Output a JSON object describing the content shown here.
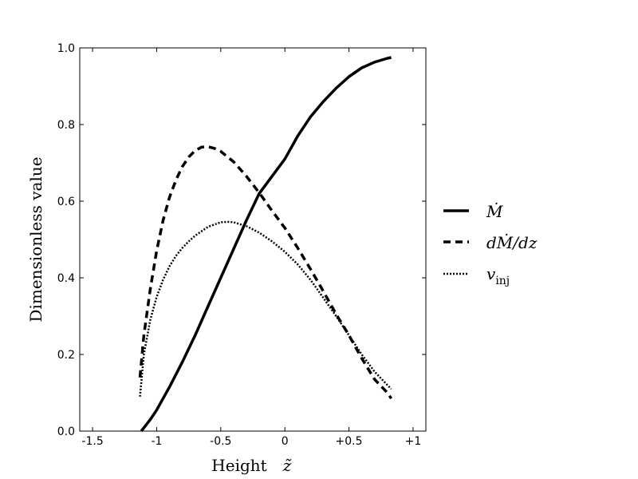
{
  "chart_data": {
    "type": "line",
    "title": "",
    "xlabel": "Height",
    "xlabel_symbol": "z̃",
    "ylabel": "Dimensionless value",
    "xlim": [
      -1.6,
      1.1
    ],
    "ylim": [
      0.0,
      1.0
    ],
    "xticks": [
      {
        "value": -1.5,
        "label": "-1.5"
      },
      {
        "value": -1.0,
        "label": "-1"
      },
      {
        "value": -0.5,
        "label": "-0.5"
      },
      {
        "value": 0.0,
        "label": "0"
      },
      {
        "value": 0.5,
        "label": "+0.5"
      },
      {
        "value": 1.0,
        "label": "+1"
      }
    ],
    "yticks": [
      {
        "value": 0.0,
        "label": "0.0"
      },
      {
        "value": 0.2,
        "label": "0.2"
      },
      {
        "value": 0.4,
        "label": "0.4"
      },
      {
        "value": 0.6,
        "label": "0.6"
      },
      {
        "value": 0.8,
        "label": "0.8"
      },
      {
        "value": 1.0,
        "label": "1.0"
      }
    ],
    "grid": false,
    "legend_position": "right-outside",
    "series": [
      {
        "name": "Ṁ",
        "style": "solid",
        "color": "#000000",
        "x": [
          -1.12,
          -1.05,
          -1.0,
          -0.9,
          -0.8,
          -0.7,
          -0.6,
          -0.5,
          -0.4,
          -0.3,
          -0.2,
          -0.1,
          0.0,
          0.1,
          0.2,
          0.3,
          0.4,
          0.5,
          0.6,
          0.7,
          0.8,
          0.83
        ],
        "y": [
          0.0,
          0.03,
          0.055,
          0.115,
          0.18,
          0.25,
          0.325,
          0.4,
          0.475,
          0.55,
          0.62,
          0.665,
          0.71,
          0.77,
          0.82,
          0.86,
          0.895,
          0.925,
          0.948,
          0.963,
          0.973,
          0.975
        ]
      },
      {
        "name": "dṀ/dz",
        "style": "dashed",
        "color": "#000000",
        "x": [
          -1.13,
          -1.1,
          -1.05,
          -1.0,
          -0.95,
          -0.9,
          -0.85,
          -0.8,
          -0.75,
          -0.7,
          -0.65,
          -0.6,
          -0.55,
          -0.5,
          -0.4,
          -0.3,
          -0.2,
          -0.1,
          0.0,
          0.1,
          0.2,
          0.3,
          0.4,
          0.5,
          0.6,
          0.7,
          0.8,
          0.83
        ],
        "y": [
          0.14,
          0.25,
          0.37,
          0.47,
          0.55,
          0.61,
          0.655,
          0.69,
          0.715,
          0.732,
          0.741,
          0.742,
          0.738,
          0.73,
          0.703,
          0.665,
          0.622,
          0.575,
          0.53,
          0.478,
          0.423,
          0.365,
          0.305,
          0.25,
          0.19,
          0.135,
          0.1,
          0.085
        ]
      },
      {
        "name": "v_inj",
        "series_label_main": "v",
        "series_label_sub": "inj",
        "style": "dotted",
        "color": "#000000",
        "x": [
          -1.13,
          -1.1,
          -1.05,
          -1.0,
          -0.95,
          -0.9,
          -0.85,
          -0.8,
          -0.75,
          -0.7,
          -0.6,
          -0.5,
          -0.45,
          -0.4,
          -0.3,
          -0.2,
          -0.1,
          0.0,
          0.1,
          0.2,
          0.3,
          0.4,
          0.5,
          0.6,
          0.7,
          0.8,
          0.83
        ],
        "y": [
          0.09,
          0.2,
          0.29,
          0.35,
          0.395,
          0.43,
          0.457,
          0.478,
          0.495,
          0.51,
          0.533,
          0.545,
          0.546,
          0.545,
          0.535,
          0.518,
          0.495,
          0.468,
          0.435,
          0.395,
          0.348,
          0.3,
          0.25,
          0.2,
          0.155,
          0.12,
          0.11
        ]
      }
    ]
  }
}
